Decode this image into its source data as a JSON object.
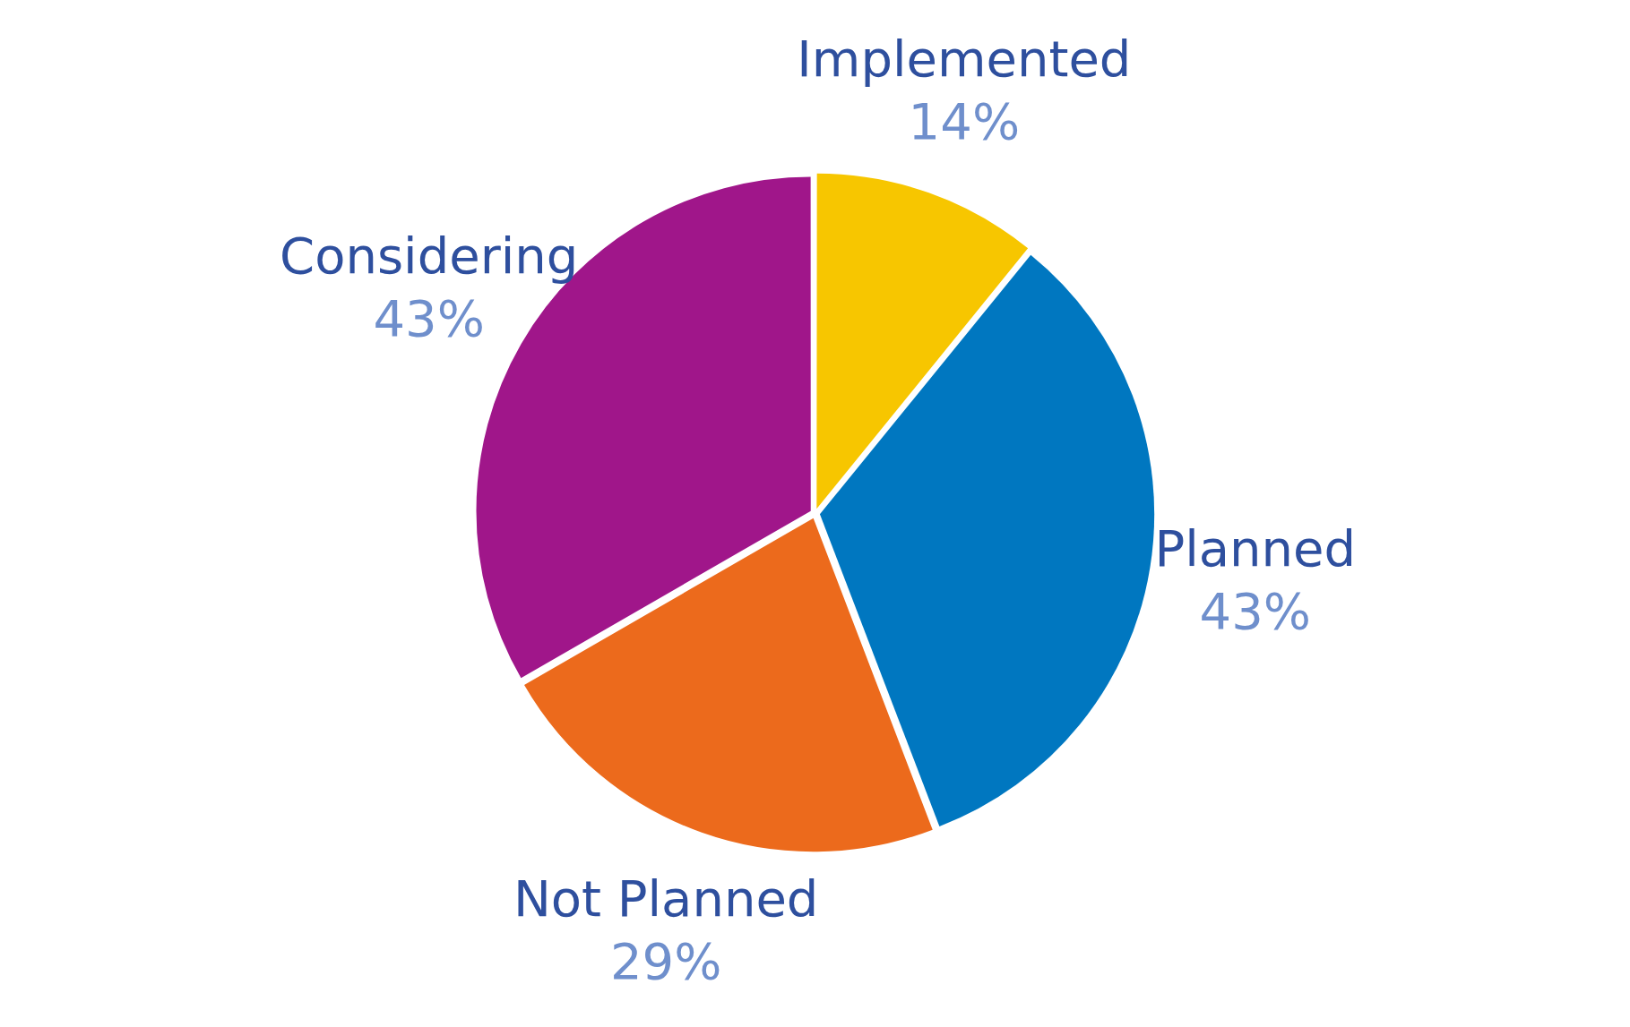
{
  "chart_data": {
    "type": "pie",
    "categories": [
      "Implemented",
      "Planned",
      "Not Planned",
      "Considering"
    ],
    "values": [
      14,
      43,
      29,
      43
    ],
    "value_labels": [
      "14%",
      "43%",
      "29%",
      "43%"
    ],
    "colors": [
      "#f7c600",
      "#0077c0",
      "#ec6a1c",
      "#a0168a"
    ],
    "legend": false
  }
}
